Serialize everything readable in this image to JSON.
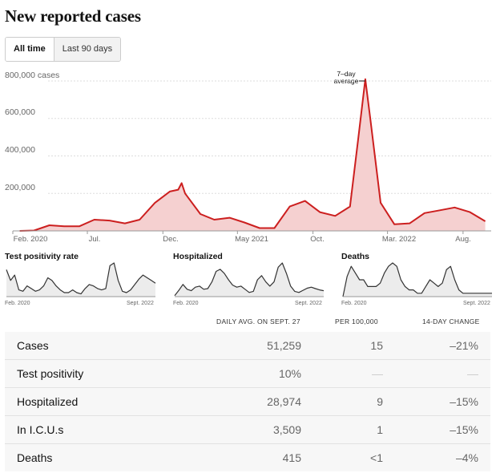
{
  "title": "New reported cases",
  "toggle": {
    "all_time": "All time",
    "last90": "Last 90 days"
  },
  "chart_data": [
    {
      "type": "area",
      "ylabel": "cases",
      "ylim": [
        0,
        800000
      ],
      "yticks": [
        {
          "value": 800000,
          "label": "800,000 cases"
        },
        {
          "value": 600000,
          "label": "600,000"
        },
        {
          "value": 400000,
          "label": "400,000"
        },
        {
          "value": 200000,
          "label": "200,000"
        }
      ],
      "x_tick_labels": [
        "Feb. 2020",
        "Jul.",
        "Dec.",
        "May 2021",
        "Oct.",
        "Mar. 2022",
        "Aug."
      ],
      "annotation": {
        "line1": "7–day",
        "line2": "average"
      },
      "colors": {
        "line": "#cc1f1f",
        "fill": "#f5d0d0"
      },
      "series": [
        {
          "x": [
            "2020-02",
            "2020-03",
            "2020-04",
            "2020-05",
            "2020-06",
            "2020-07",
            "2020-08",
            "2020-09",
            "2020-10",
            "2020-11",
            "2020-12",
            "2021-01-01",
            "2021-01-08",
            "2021-01-15",
            "2021-02",
            "2021-03",
            "2021-04",
            "2021-05",
            "2021-06",
            "2021-07",
            "2021-08",
            "2021-09",
            "2021-10",
            "2021-11",
            "2021-12",
            "2022-01-01",
            "2022-01-15",
            "2022-01-25",
            "2022-02",
            "2022-03",
            "2022-04",
            "2022-05",
            "2022-06",
            "2022-07",
            "2022-08",
            "2022-09"
          ],
          "values": [
            0,
            2000,
            30000,
            25000,
            25000,
            60000,
            55000,
            40000,
            60000,
            150000,
            210000,
            220000,
            255000,
            200000,
            90000,
            60000,
            70000,
            45000,
            15000,
            15000,
            130000,
            160000,
            100000,
            80000,
            130000,
            500000,
            810000,
            600000,
            150000,
            35000,
            40000,
            95000,
            110000,
            125000,
            100000,
            51259
          ]
        }
      ]
    },
    {
      "type": "line",
      "title": "Test positivity rate",
      "x_tick_labels": [
        "Feb. 2020",
        "Sept. 2022"
      ],
      "values": [
        20,
        12,
        16,
        5,
        4,
        8,
        6,
        4,
        5,
        8,
        14,
        12,
        8,
        5,
        3,
        3,
        5,
        3,
        2,
        6,
        9,
        8,
        6,
        5,
        6,
        23,
        25,
        12,
        4,
        3,
        5,
        9,
        13,
        16,
        14,
        12,
        10
      ]
    },
    {
      "type": "line",
      "title": "Hospitalized",
      "x_tick_labels": [
        "Feb. 2020",
        "Sept. 2022"
      ],
      "values": [
        5,
        30,
        58,
        35,
        28,
        45,
        50,
        35,
        38,
        70,
        120,
        130,
        110,
        80,
        55,
        45,
        50,
        35,
        20,
        25,
        80,
        100,
        70,
        50,
        70,
        140,
        160,
        110,
        50,
        25,
        20,
        30,
        40,
        45,
        38,
        32,
        28
      ]
    },
    {
      "type": "line",
      "title": "Deaths",
      "x_tick_labels": [
        "Feb. 2020",
        "Sept. 2022"
      ],
      "values": [
        0,
        6,
        9,
        7,
        5,
        5,
        3,
        3,
        3,
        4,
        7,
        9,
        10,
        9,
        5,
        3,
        2,
        2,
        1,
        1,
        3,
        5,
        4,
        3,
        4,
        8,
        9,
        5,
        2,
        1,
        1,
        1,
        1,
        1,
        1,
        1,
        1
      ]
    }
  ],
  "table": {
    "headers": {
      "col1": "DAILY AVG. ON SEPT. 27",
      "col2": "PER 100,000",
      "col3": "14-DAY CHANGE"
    },
    "rows": [
      {
        "label": "Cases",
        "avg": "51,259",
        "per": "15",
        "change": "–21%"
      },
      {
        "label": "Test positivity",
        "avg": "10%",
        "per": "—",
        "change": "—"
      },
      {
        "label": "Hospitalized",
        "avg": "28,974",
        "per": "9",
        "change": "–15%"
      },
      {
        "label": "In I.C.U.s",
        "avg": "3,509",
        "per": "1",
        "change": "–15%"
      },
      {
        "label": "Deaths",
        "avg": "415",
        "per": "<1",
        "change": "–4%"
      }
    ]
  }
}
